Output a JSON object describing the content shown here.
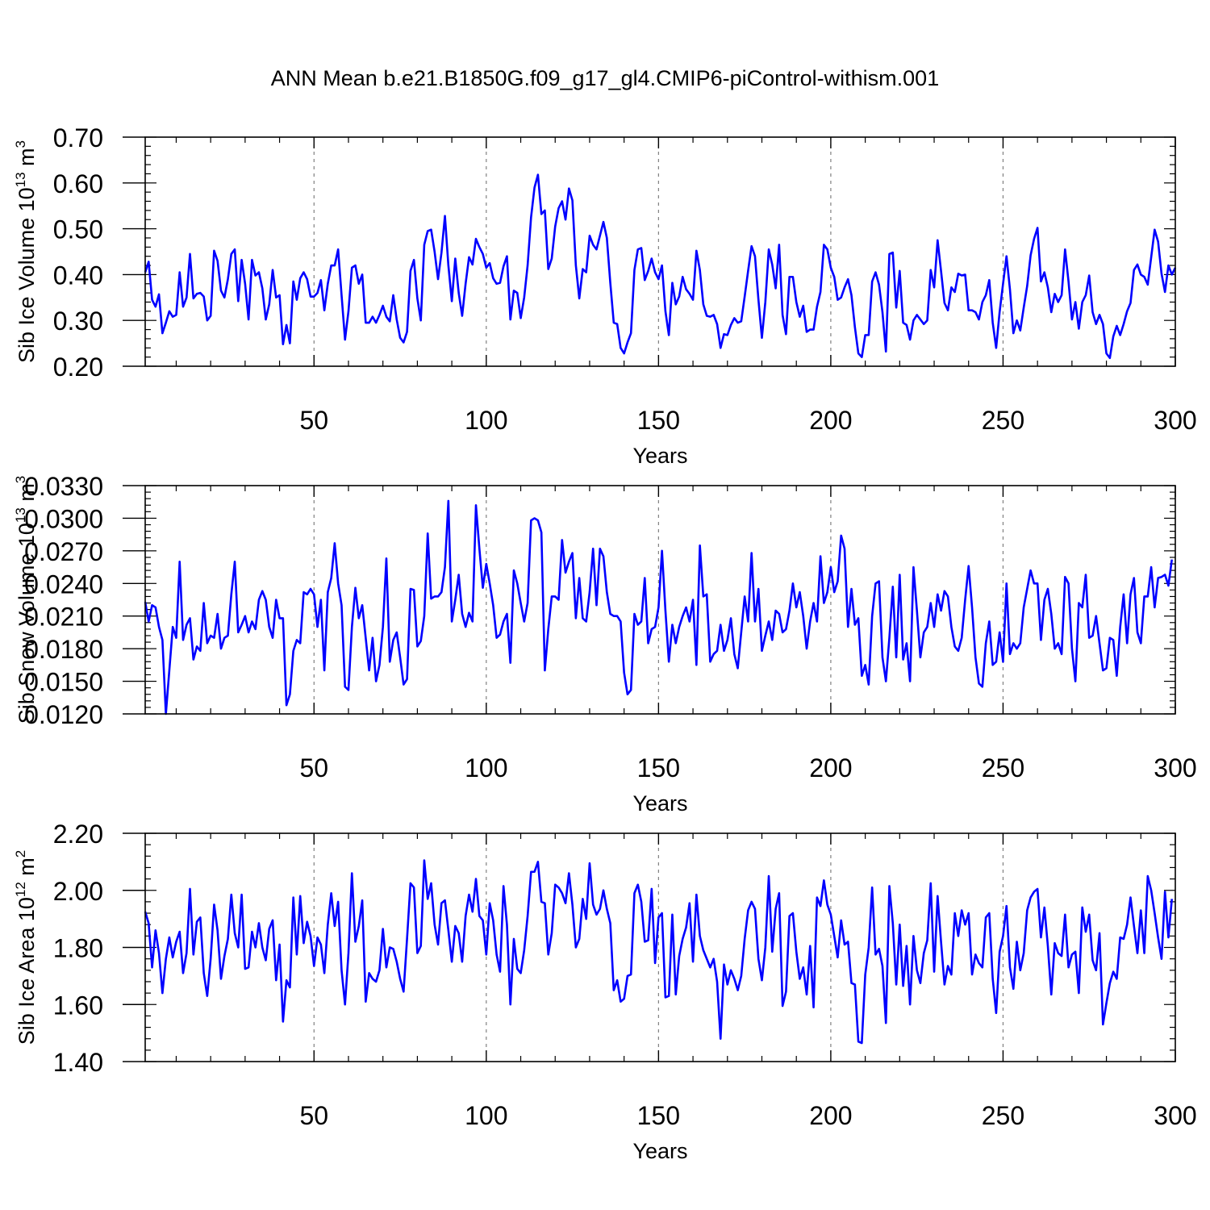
{
  "figure": {
    "title": "ANN Mean b.e21.B1850G.f09_g17_gl4.CMIP6-piControl-withism.001"
  },
  "colors": {
    "line": "#0000ff",
    "axis": "#000000",
    "grid": "#808080"
  },
  "chart_data": [
    {
      "type": "line",
      "xlabel": "Years",
      "ylabel": "Sib Ice Volume 10",
      "ylabel_sup": "13",
      "ylabel_unit": " m",
      "ylabel_unit_sup": "3",
      "xlim": [
        1,
        300
      ],
      "ylim": [
        0.2,
        0.7
      ],
      "xticks": [
        50,
        100,
        150,
        200,
        250,
        300
      ],
      "yticks": [
        "0.20",
        "0.30",
        "0.40",
        "0.50",
        "0.60",
        "0.70"
      ],
      "grid": "x-dashed",
      "series": [
        {
          "x_start": 1,
          "values": [
            0.405,
            0.428,
            0.345,
            0.33,
            0.357,
            0.272,
            0.295,
            0.32,
            0.308,
            0.312,
            0.405,
            0.33,
            0.35,
            0.445,
            0.348,
            0.358,
            0.36,
            0.352,
            0.3,
            0.31,
            0.452,
            0.43,
            0.365,
            0.35,
            0.39,
            0.445,
            0.455,
            0.342,
            0.432,
            0.38,
            0.302,
            0.432,
            0.398,
            0.405,
            0.37,
            0.302,
            0.335,
            0.41,
            0.35,
            0.355,
            0.248,
            0.29,
            0.25,
            0.385,
            0.345,
            0.392,
            0.405,
            0.39,
            0.352,
            0.352,
            0.36,
            0.388,
            0.322,
            0.38,
            0.42,
            0.42,
            0.455,
            0.355,
            0.258,
            0.32,
            0.415,
            0.42,
            0.38,
            0.4,
            0.295,
            0.295,
            0.308,
            0.295,
            0.312,
            0.332,
            0.308,
            0.298,
            0.355,
            0.302,
            0.262,
            0.252,
            0.275,
            0.408,
            0.432,
            0.348,
            0.3,
            0.465,
            0.495,
            0.498,
            0.45,
            0.39,
            0.448,
            0.528,
            0.42,
            0.342,
            0.435,
            0.36,
            0.31,
            0.38,
            0.438,
            0.422,
            0.478,
            0.46,
            0.445,
            0.415,
            0.425,
            0.392,
            0.38,
            0.382,
            0.418,
            0.44,
            0.302,
            0.365,
            0.36,
            0.305,
            0.35,
            0.42,
            0.525,
            0.59,
            0.618,
            0.532,
            0.54,
            0.412,
            0.435,
            0.505,
            0.545,
            0.56,
            0.52,
            0.588,
            0.562,
            0.42,
            0.348,
            0.412,
            0.405,
            0.485,
            0.465,
            0.455,
            0.485,
            0.515,
            0.48,
            0.382,
            0.295,
            0.292,
            0.24,
            0.228,
            0.252,
            0.272,
            0.41,
            0.455,
            0.458,
            0.388,
            0.408,
            0.435,
            0.405,
            0.39,
            0.42,
            0.32,
            0.268,
            0.382,
            0.335,
            0.352,
            0.395,
            0.368,
            0.358,
            0.345,
            0.452,
            0.41,
            0.335,
            0.31,
            0.308,
            0.312,
            0.292,
            0.24,
            0.27,
            0.268,
            0.29,
            0.305,
            0.295,
            0.298,
            0.352,
            0.408,
            0.462,
            0.44,
            0.345,
            0.262,
            0.34,
            0.455,
            0.422,
            0.37,
            0.465,
            0.312,
            0.27,
            0.395,
            0.395,
            0.34,
            0.308,
            0.332,
            0.275,
            0.28,
            0.28,
            0.33,
            0.362,
            0.465,
            0.455,
            0.415,
            0.395,
            0.345,
            0.35,
            0.372,
            0.39,
            0.355,
            0.285,
            0.228,
            0.22,
            0.268,
            0.268,
            0.385,
            0.405,
            0.378,
            0.318,
            0.232,
            0.445,
            0.448,
            0.328,
            0.408,
            0.295,
            0.29,
            0.258,
            0.3,
            0.312,
            0.302,
            0.292,
            0.3,
            0.41,
            0.372,
            0.475,
            0.408,
            0.338,
            0.322,
            0.372,
            0.362,
            0.402,
            0.398,
            0.4,
            0.322,
            0.322,
            0.318,
            0.302,
            0.34,
            0.355,
            0.388,
            0.295,
            0.24,
            0.318,
            0.38,
            0.44,
            0.368,
            0.272,
            0.3,
            0.278,
            0.328,
            0.375,
            0.442,
            0.478,
            0.502,
            0.385,
            0.405,
            0.372,
            0.318,
            0.358,
            0.34,
            0.355,
            0.455,
            0.385,
            0.302,
            0.34,
            0.282,
            0.34,
            0.355,
            0.398,
            0.318,
            0.292,
            0.312,
            0.292,
            0.228,
            0.218,
            0.265,
            0.288,
            0.268,
            0.292,
            0.32,
            0.338,
            0.41,
            0.422,
            0.4,
            0.395,
            0.378,
            0.438,
            0.498,
            0.472,
            0.402,
            0.362,
            0.42,
            0.4,
            0.415
          ]
        }
      ]
    },
    {
      "type": "line",
      "xlabel": "Years",
      "ylabel": "Sib Snow Volume 10",
      "ylabel_sup": "13",
      "ylabel_unit": " m",
      "ylabel_unit_sup": "3",
      "xlim": [
        1,
        300
      ],
      "ylim": [
        0.012,
        0.033
      ],
      "xticks": [
        50,
        100,
        150,
        200,
        250,
        300
      ],
      "yticks": [
        "0.0120",
        "0.0150",
        "0.0180",
        "0.0210",
        "0.0240",
        "0.0270",
        "0.0300",
        "0.0330"
      ],
      "grid": "x-dashed",
      "series": [
        {
          "x_start": 1,
          "values": [
            0.0223,
            0.0205,
            0.022,
            0.0218,
            0.02,
            0.0188,
            0.012,
            0.016,
            0.02,
            0.019,
            0.026,
            0.0188,
            0.0202,
            0.0208,
            0.017,
            0.0182,
            0.0178,
            0.0222,
            0.0185,
            0.0192,
            0.019,
            0.0212,
            0.018,
            0.019,
            0.0192,
            0.023,
            0.026,
            0.0195,
            0.0202,
            0.021,
            0.0195,
            0.0205,
            0.0198,
            0.0225,
            0.0233,
            0.0225,
            0.02,
            0.019,
            0.0225,
            0.0208,
            0.0208,
            0.0128,
            0.0138,
            0.0178,
            0.0188,
            0.0185,
            0.0232,
            0.023,
            0.0235,
            0.023,
            0.02,
            0.0225,
            0.016,
            0.0232,
            0.0245,
            0.0277,
            0.024,
            0.022,
            0.0145,
            0.0142,
            0.02,
            0.0236,
            0.0208,
            0.022,
            0.019,
            0.016,
            0.019,
            0.015,
            0.0165,
            0.02,
            0.0263,
            0.0168,
            0.0188,
            0.0195,
            0.0172,
            0.0147,
            0.0152,
            0.0235,
            0.0234,
            0.0182,
            0.0187,
            0.021,
            0.0286,
            0.0226,
            0.0228,
            0.0228,
            0.0232,
            0.0255,
            0.0316,
            0.0205,
            0.0225,
            0.0248,
            0.0212,
            0.02,
            0.0213,
            0.0205,
            0.0312,
            0.0272,
            0.0236,
            0.0258,
            0.024,
            0.022,
            0.019,
            0.0193,
            0.0205,
            0.0212,
            0.0167,
            0.0252,
            0.024,
            0.0222,
            0.0205,
            0.0222,
            0.0298,
            0.03,
            0.0298,
            0.0287,
            0.016,
            0.0198,
            0.0228,
            0.0228,
            0.0225,
            0.028,
            0.025,
            0.026,
            0.0268,
            0.0208,
            0.0245,
            0.0208,
            0.0205,
            0.0232,
            0.0272,
            0.022,
            0.0272,
            0.0265,
            0.0232,
            0.0212,
            0.021,
            0.021,
            0.0205,
            0.0158,
            0.0138,
            0.0142,
            0.0212,
            0.0202,
            0.0205,
            0.0245,
            0.0185,
            0.0198,
            0.02,
            0.0218,
            0.027,
            0.0215,
            0.0168,
            0.0202,
            0.0185,
            0.02,
            0.021,
            0.0218,
            0.0205,
            0.0225,
            0.0165,
            0.0275,
            0.0228,
            0.023,
            0.0168,
            0.0175,
            0.0178,
            0.0202,
            0.0178,
            0.0188,
            0.0208,
            0.0175,
            0.0162,
            0.0195,
            0.0228,
            0.0205,
            0.0268,
            0.0205,
            0.0235,
            0.0178,
            0.0192,
            0.0205,
            0.0188,
            0.0215,
            0.0212,
            0.0195,
            0.0198,
            0.0215,
            0.024,
            0.0218,
            0.0232,
            0.021,
            0.018,
            0.0205,
            0.0222,
            0.0205,
            0.0265,
            0.0222,
            0.0232,
            0.0255,
            0.0232,
            0.0242,
            0.0284,
            0.0272,
            0.02,
            0.0235,
            0.0202,
            0.0208,
            0.0155,
            0.0165,
            0.0147,
            0.021,
            0.024,
            0.0242,
            0.0172,
            0.015,
            0.019,
            0.0237,
            0.0172,
            0.0248,
            0.017,
            0.0185,
            0.015,
            0.0255,
            0.0215,
            0.0172,
            0.0195,
            0.02,
            0.0222,
            0.02,
            0.023,
            0.0215,
            0.0233,
            0.0228,
            0.02,
            0.0182,
            0.0178,
            0.019,
            0.0225,
            0.0256,
            0.0218,
            0.0172,
            0.0148,
            0.0145,
            0.0185,
            0.0205,
            0.0165,
            0.0168,
            0.0195,
            0.0168,
            0.024,
            0.0175,
            0.0185,
            0.018,
            0.0185,
            0.0218,
            0.0235,
            0.0252,
            0.024,
            0.024,
            0.0188,
            0.0225,
            0.0235,
            0.0212,
            0.018,
            0.0185,
            0.0175,
            0.0246,
            0.024,
            0.018,
            0.015,
            0.0222,
            0.0218,
            0.0248,
            0.019,
            0.0192,
            0.021,
            0.0185,
            0.016,
            0.0162,
            0.019,
            0.0188,
            0.0155,
            0.02,
            0.023,
            0.0185,
            0.023,
            0.0245,
            0.0195,
            0.0185,
            0.0228,
            0.0228,
            0.0255,
            0.0218,
            0.0245,
            0.0246,
            0.0248,
            0.0238,
            0.0262
          ]
        }
      ]
    },
    {
      "type": "line",
      "xlabel": "Years",
      "ylabel": "Sib Ice Area 10",
      "ylabel_sup": "12",
      "ylabel_unit": " m",
      "ylabel_unit_sup": "2",
      "xlim": [
        1,
        300
      ],
      "ylim": [
        1.4,
        2.2
      ],
      "xticks": [
        50,
        100,
        150,
        200,
        250,
        300
      ],
      "yticks": [
        "1.40",
        "1.60",
        "1.80",
        "2.00",
        "2.20"
      ],
      "grid": "x-dashed",
      "series": [
        {
          "x_start": 1,
          "values": [
            1.925,
            1.885,
            1.73,
            1.86,
            1.78,
            1.64,
            1.76,
            1.835,
            1.765,
            1.82,
            1.855,
            1.71,
            1.78,
            2.005,
            1.775,
            1.89,
            1.905,
            1.71,
            1.63,
            1.76,
            1.95,
            1.86,
            1.69,
            1.77,
            1.83,
            1.985,
            1.85,
            1.8,
            1.985,
            1.725,
            1.73,
            1.855,
            1.8,
            1.885,
            1.8,
            1.755,
            1.865,
            1.895,
            1.685,
            1.81,
            1.54,
            1.685,
            1.66,
            1.975,
            1.775,
            1.98,
            1.815,
            1.89,
            1.84,
            1.735,
            1.835,
            1.81,
            1.71,
            1.88,
            1.99,
            1.875,
            1.96,
            1.72,
            1.6,
            1.78,
            2.06,
            1.82,
            1.875,
            1.965,
            1.61,
            1.71,
            1.69,
            1.68,
            1.72,
            1.865,
            1.73,
            1.8,
            1.795,
            1.75,
            1.69,
            1.645,
            1.83,
            2.025,
            2.01,
            1.78,
            1.805,
            2.105,
            1.97,
            2.025,
            1.88,
            1.81,
            1.955,
            1.965,
            1.86,
            1.75,
            1.875,
            1.85,
            1.75,
            1.91,
            1.985,
            1.925,
            2.04,
            1.91,
            1.895,
            1.775,
            1.955,
            1.895,
            1.775,
            1.715,
            2.015,
            1.88,
            1.6,
            1.83,
            1.725,
            1.71,
            1.79,
            1.91,
            2.065,
            2.065,
            2.1,
            1.96,
            1.955,
            1.775,
            1.85,
            2.02,
            2.01,
            1.99,
            1.955,
            2.06,
            1.95,
            1.8,
            1.83,
            1.97,
            1.9,
            2.095,
            1.95,
            1.915,
            1.935,
            2.0,
            1.935,
            1.885,
            1.65,
            1.685,
            1.61,
            1.62,
            1.7,
            1.705,
            1.99,
            2.02,
            1.96,
            1.82,
            1.825,
            2.005,
            1.745,
            1.905,
            1.92,
            1.625,
            1.63,
            1.915,
            1.635,
            1.77,
            1.83,
            1.87,
            1.955,
            1.75,
            1.985,
            1.84,
            1.79,
            1.76,
            1.73,
            1.76,
            1.68,
            1.48,
            1.74,
            1.67,
            1.72,
            1.69,
            1.65,
            1.7,
            1.83,
            1.93,
            1.96,
            1.935,
            1.76,
            1.685,
            1.8,
            2.05,
            1.785,
            1.935,
            1.99,
            1.595,
            1.645,
            1.91,
            1.92,
            1.785,
            1.69,
            1.73,
            1.635,
            1.805,
            1.59,
            1.975,
            1.945,
            2.035,
            1.95,
            1.915,
            1.84,
            1.765,
            1.895,
            1.81,
            1.82,
            1.675,
            1.67,
            1.47,
            1.465,
            1.705,
            1.8,
            2.01,
            1.775,
            1.795,
            1.735,
            1.535,
            2.015,
            1.885,
            1.67,
            1.88,
            1.665,
            1.805,
            1.6,
            1.84,
            1.72,
            1.675,
            1.78,
            1.825,
            2.025,
            1.715,
            1.98,
            1.82,
            1.67,
            1.735,
            1.705,
            1.92,
            1.84,
            1.93,
            1.88,
            1.92,
            1.705,
            1.775,
            1.745,
            1.73,
            1.905,
            1.92,
            1.69,
            1.57,
            1.785,
            1.84,
            1.945,
            1.73,
            1.655,
            1.82,
            1.72,
            1.78,
            1.93,
            1.975,
            1.995,
            2.005,
            1.835,
            1.94,
            1.805,
            1.635,
            1.815,
            1.78,
            1.77,
            1.915,
            1.73,
            1.775,
            1.785,
            1.64,
            1.94,
            1.855,
            1.915,
            1.755,
            1.72,
            1.85,
            1.53,
            1.605,
            1.675,
            1.715,
            1.69,
            1.835,
            1.83,
            1.88,
            1.975,
            1.875,
            1.78,
            1.93,
            1.78,
            2.05,
            2.0,
            1.92,
            1.835,
            1.76,
            1.995,
            1.835,
            1.97
          ]
        }
      ]
    }
  ]
}
